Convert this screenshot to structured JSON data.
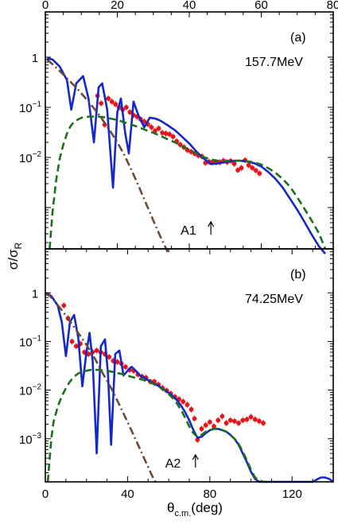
{
  "chart_data": [
    {
      "type": "scatter",
      "panel": "(a)",
      "energy_label": "157.7MeV",
      "annotation": "A1",
      "annotation_x": 46,
      "x_axis": "top",
      "xlim": [
        0,
        80
      ],
      "xticks": [
        0,
        20,
        40,
        60,
        80
      ],
      "yscale": "log",
      "ylim": [
        0.00015,
        8
      ],
      "yticks": [
        {
          "value": 1,
          "label": "1"
        },
        {
          "value": 0.1,
          "label": "10",
          "exp": "−1"
        },
        {
          "value": 0.01,
          "label": "10",
          "exp": "−2"
        }
      ],
      "series": [
        {
          "style": "data-points",
          "color": "#e8141c",
          "x": [
            14.5,
            15.5,
            16.5,
            17.5,
            18.5,
            19.5,
            20.5,
            21.5,
            22.5,
            23.5,
            24.5,
            25.5,
            26.5,
            27.5,
            28.5,
            29.5,
            30.5,
            31.5,
            32.5,
            33.5,
            34.5,
            35.5,
            36.5,
            37.5,
            38.5,
            39.5,
            40.5,
            41.5,
            42.5,
            43.5,
            44.5,
            45.5,
            46.5,
            47.5,
            48.5,
            49.5,
            50.5,
            51.5,
            52.5,
            53.5,
            54.5,
            55.5,
            56.5,
            57.5,
            58.5,
            59.5
          ],
          "y": [
            0.17,
            0.12,
            0.045,
            0.15,
            0.13,
            0.115,
            0.1,
            0.09,
            0.1,
            0.08,
            0.07,
            0.065,
            0.058,
            0.052,
            0.046,
            0.04,
            0.034,
            0.038,
            0.031,
            0.03,
            0.029,
            0.026,
            0.021,
            0.018,
            0.016,
            0.014,
            0.013,
            0.012,
            0.011,
            0.0105,
            0.0078,
            0.0082,
            0.0081,
            0.0079,
            0.008,
            0.0086,
            0.0081,
            0.0085,
            0.0075,
            0.0056,
            0.0062,
            0.0088,
            0.007,
            0.0062,
            0.0055,
            0.0048
          ]
        },
        {
          "style": "solid",
          "color": "#1428c8",
          "x": [
            0.5,
            2,
            4,
            6,
            7.2,
            8.6,
            10.5,
            12,
            13.5,
            14.8,
            15.8,
            17.2,
            18.8,
            20,
            21,
            22.2,
            23.2,
            24.5,
            26,
            27.5,
            29,
            30.5,
            32,
            34,
            36,
            38,
            40,
            42,
            44,
            46,
            48,
            50,
            52,
            54,
            56,
            58,
            60,
            62,
            64,
            66,
            68,
            70,
            72,
            74,
            76,
            77.8
          ],
          "y": [
            0.95,
            0.9,
            0.65,
            0.35,
            0.09,
            0.3,
            0.42,
            0.15,
            0.02,
            0.25,
            0.3,
            0.09,
            0.0025,
            0.08,
            0.15,
            0.03,
            0.012,
            0.13,
            0.065,
            0.04,
            0.062,
            0.06,
            0.054,
            0.044,
            0.035,
            0.026,
            0.019,
            0.013,
            0.0095,
            0.0074,
            0.0076,
            0.0081,
            0.0085,
            0.0086,
            0.0083,
            0.0077,
            0.0066,
            0.0051,
            0.0037,
            0.0025,
            0.0015,
            0.0009,
            0.00052,
            0.00029,
            0.00017,
            0.00012
          ]
        },
        {
          "style": "dashed",
          "color": "#1e6e1e",
          "x": [
            1.2,
            2,
            3,
            4,
            5,
            6,
            7,
            8,
            10,
            12,
            14,
            16,
            18,
            20,
            22,
            24,
            26,
            28,
            30,
            32,
            34,
            36,
            38,
            40,
            42,
            44,
            46,
            48,
            50,
            52,
            54,
            56,
            58,
            60,
            62,
            64,
            66,
            68,
            70,
            72,
            74,
            76,
            77.8
          ],
          "y": [
            0.00015,
            0.0008,
            0.0035,
            0.0095,
            0.018,
            0.03,
            0.042,
            0.052,
            0.062,
            0.065,
            0.066,
            0.064,
            0.06,
            0.056,
            0.05,
            0.045,
            0.04,
            0.035,
            0.031,
            0.027,
            0.023,
            0.02,
            0.017,
            0.014,
            0.012,
            0.0102,
            0.0091,
            0.0086,
            0.0085,
            0.0086,
            0.0086,
            0.0084,
            0.008,
            0.0072,
            0.0061,
            0.0049,
            0.0037,
            0.0026,
            0.0016,
            0.00095,
            0.00055,
            0.00031,
            0.00015
          ]
        },
        {
          "style": "dashdot",
          "color": "#6b4a3a",
          "x": [
            0.5,
            3,
            6,
            9,
            12,
            15,
            18,
            20,
            22,
            24,
            26,
            28,
            30,
            32,
            34
          ],
          "y": [
            0.9,
            0.62,
            0.38,
            0.23,
            0.13,
            0.07,
            0.034,
            0.02,
            0.011,
            0.0055,
            0.0026,
            0.0012,
            0.00055,
            0.00026,
            0.00013
          ]
        }
      ]
    },
    {
      "type": "scatter",
      "panel": "(b)",
      "energy_label": "74.25MeV",
      "annotation": "A2",
      "annotation_x": 73,
      "x_axis": "bottom",
      "xlim": [
        0,
        140
      ],
      "xticks": [
        0,
        40,
        80,
        120
      ],
      "xlabel": "θ",
      "xlabel_sub": "c.m.",
      "xlabel_unit": "(deg)",
      "yscale": "log",
      "ylim": [
        0.00013,
        8
      ],
      "yticks": [
        {
          "value": 1,
          "label": "1"
        },
        {
          "value": 0.1,
          "label": "10",
          "exp": "−1"
        },
        {
          "value": 0.01,
          "label": "10",
          "exp": "−2"
        },
        {
          "value": 0.001,
          "label": "10",
          "exp": "−3"
        }
      ],
      "series": [
        {
          "style": "data-points",
          "color": "#e8141c",
          "x": [
            9,
            11,
            13,
            15,
            17,
            19,
            21,
            23,
            25,
            27,
            29,
            31,
            33,
            35,
            37,
            39,
            41,
            43,
            45,
            47,
            49,
            51,
            53,
            55,
            57,
            59,
            61,
            63,
            65,
            67,
            69,
            71,
            72.5,
            74,
            76,
            78,
            80,
            82,
            84,
            86,
            88,
            90,
            92,
            94,
            96,
            98,
            100,
            102,
            104,
            106
          ],
          "y": [
            0.55,
            0.3,
            0.1,
            0.08,
            0.09,
            0.06,
            0.055,
            0.06,
            0.065,
            0.06,
            0.055,
            0.048,
            0.04,
            0.038,
            0.035,
            0.03,
            0.026,
            0.025,
            0.021,
            0.019,
            0.018,
            0.015,
            0.015,
            0.013,
            0.011,
            0.0098,
            0.0085,
            0.0073,
            0.0065,
            0.0058,
            0.005,
            0.004,
            0.0026,
            0.00095,
            0.0016,
            0.0019,
            0.0022,
            0.0018,
            0.0024,
            0.0029,
            0.0021,
            0.0024,
            0.0023,
            0.0021,
            0.0024,
            0.0025,
            0.0028,
            0.0025,
            0.0023,
            0.0021
          ]
        },
        {
          "style": "solid",
          "color": "#1428c8",
          "x": [
            0.5,
            3,
            6,
            8,
            10,
            12,
            14,
            16,
            18,
            20,
            21.5,
            23,
            25,
            27,
            29,
            30.5,
            32,
            34,
            36,
            38,
            40,
            42,
            44,
            46,
            48,
            50,
            52,
            54,
            56,
            58,
            60,
            62,
            64,
            66,
            68,
            70,
            72,
            74,
            76,
            78,
            80,
            82,
            84,
            86,
            88,
            90,
            92,
            94,
            96,
            98,
            100,
            102,
            104,
            106,
            108,
            110,
            130,
            132,
            134,
            136,
            138,
            140
          ],
          "y": [
            1.0,
            0.85,
            0.55,
            0.25,
            0.05,
            0.25,
            0.35,
            0.12,
            0.012,
            0.06,
            0.15,
            0.04,
            0.0005,
            0.08,
            0.11,
            0.02,
            0.00075,
            0.055,
            0.065,
            0.02,
            0.025,
            0.03,
            0.025,
            0.02,
            0.018,
            0.016,
            0.014,
            0.013,
            0.0115,
            0.01,
            0.0088,
            0.0075,
            0.0062,
            0.0048,
            0.0035,
            0.0024,
            0.0015,
            0.00105,
            0.0011,
            0.0013,
            0.0015,
            0.0016,
            0.0016,
            0.0015,
            0.0014,
            0.0012,
            0.001,
            0.00075,
            0.0005,
            0.00033,
            0.00021,
            0.00015,
            0.00013,
            0.00013,
            0.00013,
            0.00013,
            0.00013,
            0.000145,
            0.00016,
            0.00016,
            0.00015,
            0.00013
          ]
        },
        {
          "style": "dashed",
          "color": "#1e6e1e",
          "x": [
            1.2,
            2,
            3,
            4,
            6,
            8,
            10,
            12,
            14,
            16,
            18,
            20,
            22,
            24,
            26,
            28,
            30,
            32,
            34,
            36,
            38,
            40,
            42,
            44,
            46,
            48,
            50,
            52,
            54,
            56,
            58,
            60,
            62,
            64,
            66,
            68,
            70,
            72,
            74,
            76,
            78,
            80,
            82,
            84,
            86,
            88,
            90,
            92,
            94,
            96,
            98,
            100,
            102,
            104,
            106,
            108
          ],
          "y": [
            0.00013,
            0.00035,
            0.0011,
            0.0022,
            0.0045,
            0.0075,
            0.011,
            0.015,
            0.019,
            0.022,
            0.024,
            0.025,
            0.026,
            0.0262,
            0.026,
            0.0255,
            0.025,
            0.024,
            0.023,
            0.022,
            0.021,
            0.0198,
            0.0187,
            0.0177,
            0.0168,
            0.016,
            0.0148,
            0.0137,
            0.0125,
            0.0112,
            0.0098,
            0.0083,
            0.0068,
            0.0053,
            0.0039,
            0.0027,
            0.0018,
            0.0013,
            0.0011,
            0.0012,
            0.0014,
            0.0015,
            0.0016,
            0.0016,
            0.0015,
            0.0014,
            0.0012,
            0.001,
            0.00078,
            0.00055,
            0.00036,
            0.00023,
            0.00016,
            0.00014,
            0.00013,
            0.00013
          ]
        },
        {
          "style": "dashdot",
          "color": "#6b4a3a",
          "x": [
            0.5,
            4,
            8,
            12,
            16,
            20,
            24,
            28,
            32,
            36,
            40,
            44,
            48,
            52,
            54
          ],
          "y": [
            1.0,
            0.72,
            0.44,
            0.26,
            0.15,
            0.085,
            0.045,
            0.022,
            0.011,
            0.005,
            0.0022,
            0.00095,
            0.0004,
            0.00017,
            0.00012
          ]
        }
      ]
    }
  ],
  "shared_ylabel": {
    "main": "σ/σ",
    "sub": "R"
  }
}
